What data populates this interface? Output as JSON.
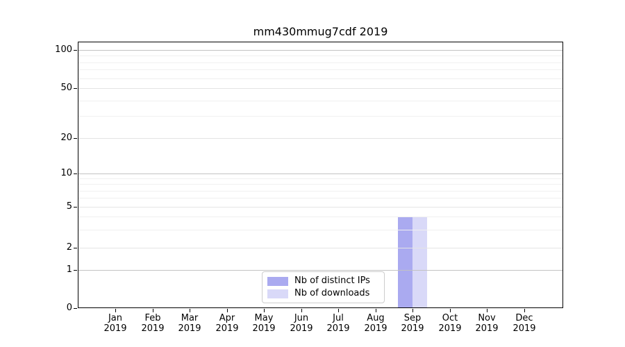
{
  "figure": {
    "title": "mm430mmug7cdf 2019"
  },
  "chart_data": {
    "type": "bar",
    "title": "mm430mmug7cdf 2019",
    "categories": [
      "Jan",
      "Feb",
      "Mar",
      "Apr",
      "May",
      "Jun",
      "Jul",
      "Aug",
      "Sep",
      "Oct",
      "Nov",
      "Dec"
    ],
    "x_year_label": "2019",
    "series": [
      {
        "name": "Nb of distinct IPs",
        "color": "#aaaaf0",
        "values": [
          0,
          0,
          0,
          0,
          0,
          0,
          0,
          0,
          4,
          0,
          0,
          0
        ]
      },
      {
        "name": "Nb of downloads",
        "color": "#d9d9f8",
        "values": [
          0,
          0,
          0,
          0,
          0,
          0,
          0,
          0,
          4,
          0,
          0,
          0
        ]
      }
    ],
    "y_axis": {
      "tick_labels": [
        0,
        1,
        2,
        5,
        10,
        20,
        50,
        100
      ],
      "scale": "log-like (symlog), 0 at baseline",
      "range": [
        0,
        110
      ],
      "minor_gridline_values": [
        3,
        4,
        6,
        7,
        8,
        9,
        30,
        40,
        60,
        70,
        80,
        90
      ]
    },
    "xlabel": "",
    "ylabel": "",
    "grid": "horizontal only",
    "legend_position": "bottom-center-inside"
  }
}
